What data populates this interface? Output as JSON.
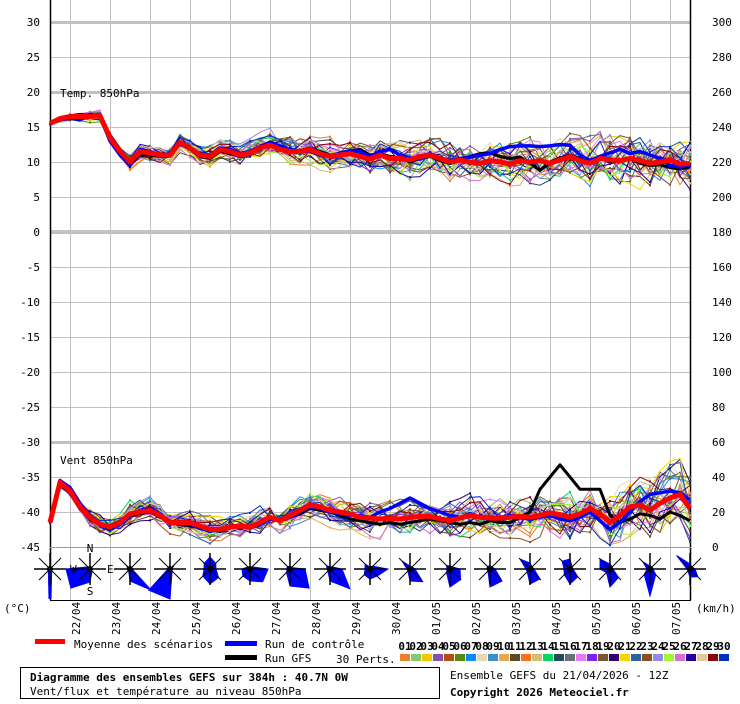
{
  "chart_data": {
    "type": "line",
    "panels": [
      {
        "label": "Temp. 850hPa",
        "unit": "(°C)",
        "axis": "left",
        "ylim": [
          0,
          30
        ],
        "ticks": [
          30,
          25,
          20,
          15,
          10,
          5,
          0
        ],
        "mean": [
          15.5,
          16.2,
          16.5,
          16.5,
          16.5,
          16.6,
          13.5,
          11.5,
          10.0,
          11.5,
          11.3,
          11.0,
          11.0,
          12.8,
          12.0,
          11.0,
          10.8,
          11.8,
          11.5,
          11.0,
          11.3,
          12.0,
          12.4,
          11.8,
          11.5,
          11.5,
          11.8,
          11.2,
          10.8,
          11.0,
          11.2,
          10.8,
          10.4,
          11.0,
          10.5,
          10.5,
          10.3,
          10.8,
          11.0,
          10.5,
          10.0,
          10.3,
          10.0,
          9.8,
          10.2,
          10.0,
          9.7,
          10.2,
          10.0,
          10.2,
          9.8,
          10.3,
          10.8,
          10.2,
          9.8,
          10.5,
          10.3,
          10.2,
          10.5,
          10.2,
          9.8,
          10.0,
          10.3,
          9.7,
          9.8
        ],
        "control": [
          15.5,
          16.0,
          16.3,
          16.0,
          16.8,
          16.5,
          13.0,
          11.0,
          9.5,
          11.8,
          11.5,
          11.0,
          11.2,
          12.5,
          12.0,
          11.2,
          11.0,
          12.0,
          11.8,
          11.2,
          11.5,
          12.2,
          12.8,
          12.3,
          11.8,
          11.5,
          11.5,
          11.0,
          10.8,
          11.3,
          11.6,
          11.5,
          10.8,
          11.5,
          11.8,
          11.0,
          10.6,
          10.4,
          11.2,
          10.6,
          10.2,
          10.5,
          10.7,
          11.0,
          11.2,
          11.8,
          12.2,
          12.3,
          12.3,
          12.2,
          12.3,
          12.5,
          12.4,
          11.0,
          10.2,
          10.8,
          11.3,
          11.8,
          11.2,
          11.5,
          11.0,
          10.5,
          9.5,
          9.3,
          9.6
        ],
        "gfs": [
          15.5,
          16.3,
          16.6,
          16.8,
          16.6,
          16.4,
          13.8,
          11.2,
          9.8,
          11.0,
          11.0,
          10.8,
          10.8,
          12.6,
          11.8,
          10.8,
          10.5,
          11.5,
          11.2,
          11.0,
          11.2,
          11.8,
          12.5,
          12.0,
          11.8,
          11.6,
          12.0,
          11.5,
          11.0,
          11.0,
          11.5,
          11.8,
          11.0,
          11.2,
          10.8,
          10.6,
          10.0,
          10.5,
          10.8,
          10.2,
          9.8,
          10.2,
          10.8,
          11.2,
          11.3,
          10.8,
          10.5,
          10.7,
          9.8,
          8.8,
          10.0,
          10.6,
          11.0,
          10.5,
          10.3,
          10.5,
          10.0,
          10.2,
          10.4,
          9.8,
          9.5,
          9.6,
          9.2,
          9.0,
          9.3
        ],
        "ensemble_spread_by_day": [
          0.4,
          0.6,
          0.9,
          1.0,
          1.1,
          1.3,
          1.5,
          1.6,
          1.8,
          1.9,
          2.0,
          2.1,
          2.2,
          2.4,
          2.6,
          2.8,
          3.0
        ]
      },
      {
        "label": "Vent 850hPa",
        "unit": "(km/h)",
        "axis": "right",
        "ylim": [
          0,
          120
        ],
        "ticks": [
          300,
          280,
          260,
          240,
          220,
          200,
          180,
          160,
          140,
          120,
          100,
          80,
          60,
          40,
          20,
          0
        ],
        "mean": [
          14,
          37,
          32,
          23,
          17,
          13,
          11.4,
          14,
          19,
          20,
          21,
          18,
          14,
          14,
          14,
          12,
          10,
          10,
          11.5,
          12,
          11.5,
          14,
          17,
          15,
          18,
          21,
          24,
          23,
          21,
          20,
          19,
          17,
          16.6,
          16,
          16.5,
          16,
          17,
          17.5,
          17.5,
          16,
          15,
          16.5,
          18,
          17,
          16.6,
          16.5,
          17,
          17.5,
          17,
          18,
          19.4,
          18.5,
          17,
          19,
          22,
          19,
          14,
          18,
          23,
          24,
          21,
          25,
          28,
          30,
          22
        ],
        "control": [
          14,
          38,
          34,
          25,
          18,
          12,
          10,
          13,
          18,
          21,
          22,
          19,
          14,
          13,
          13,
          11,
          9,
          10,
          12,
          12,
          11,
          13,
          16,
          15,
          17,
          20,
          23,
          22,
          20,
          19,
          18,
          18,
          17,
          20,
          22,
          25,
          28,
          25,
          22,
          20,
          18,
          17,
          19,
          17,
          16,
          17,
          18,
          17,
          16,
          17,
          18,
          16,
          15,
          17,
          20,
          15,
          10,
          14,
          20,
          26,
          30,
          31,
          32,
          31,
          27
        ],
        "gfs": [
          14,
          36,
          31,
          22,
          16,
          13,
          12,
          15,
          18,
          19,
          20,
          17,
          15,
          13,
          12,
          11,
          10,
          9,
          11,
          12,
          12,
          14,
          16,
          16,
          17,
          19,
          22,
          21,
          20,
          18,
          16,
          15,
          14,
          13,
          14,
          13,
          14,
          15,
          16,
          15,
          14,
          13,
          14,
          13,
          15,
          14,
          14,
          17,
          20,
          33,
          40,
          47,
          40,
          33,
          33,
          33,
          18,
          14,
          16,
          19,
          18,
          16,
          20,
          18,
          15
        ],
        "ensemble_spread_by_day": [
          2,
          4,
          5,
          5,
          5,
          6,
          6,
          6,
          7,
          7,
          8,
          8,
          9,
          10,
          12,
          14,
          15
        ]
      }
    ],
    "left_ticks": [
      30,
      25,
      20,
      15,
      10,
      5,
      0,
      -5,
      -10,
      -15,
      -20,
      -25,
      -30,
      -35,
      -40,
      -45
    ],
    "right_ticks": [
      300,
      280,
      260,
      240,
      220,
      200,
      180,
      160,
      140,
      120,
      100,
      80,
      60,
      40,
      20,
      0
    ],
    "x_step_hours": 6,
    "x_tick_labels": [
      "22/04",
      "23/04",
      "24/04",
      "25/04",
      "26/04",
      "27/04",
      "28/04",
      "29/04",
      "30/04",
      "01/05",
      "02/05",
      "03/05",
      "04/05",
      "05/05",
      "06/05",
      "07/05"
    ],
    "wind_rose": {
      "direction_labels": {
        "n": "N",
        "e": "E",
        "s": "S",
        "w": "W"
      },
      "direction_order": [
        "N",
        "NE",
        "E",
        "SE",
        "S",
        "SW",
        "W",
        "NW"
      ],
      "frequencies": [
        [
          1,
          1,
          1,
          1,
          45,
          1,
          1,
          1
        ],
        [
          0,
          0,
          0,
          3,
          13,
          27,
          24,
          3
        ],
        [
          0,
          0,
          2,
          39,
          12,
          2,
          2,
          5
        ],
        [
          0,
          6,
          2,
          3,
          32,
          30,
          2,
          2
        ],
        [
          12,
          8,
          6,
          12,
          15,
          10,
          6,
          8
        ],
        [
          0,
          3,
          18,
          18,
          12,
          10,
          8,
          3
        ],
        [
          2,
          2,
          15,
          27,
          17,
          5,
          3,
          4
        ],
        [
          2,
          3,
          12,
          28,
          12,
          3,
          3,
          5
        ],
        [
          2,
          4,
          18,
          10,
          10,
          8,
          5,
          7
        ],
        [
          3,
          3,
          5,
          18,
          12,
          3,
          3,
          11
        ],
        [
          3,
          3,
          10,
          15,
          18,
          5,
          3,
          5
        ],
        [
          3,
          3,
          5,
          17,
          18,
          3,
          3,
          4
        ],
        [
          6,
          3,
          4,
          14,
          15,
          4,
          4,
          14
        ],
        [
          10,
          3,
          3,
          11,
          15,
          8,
          6,
          11
        ],
        [
          5,
          3,
          3,
          12,
          18,
          5,
          10,
          14
        ],
        [
          3,
          3,
          3,
          8,
          27,
          8,
          3,
          10
        ],
        [
          5,
          3,
          5,
          11,
          8,
          3,
          3,
          19
        ]
      ]
    },
    "legend": {
      "mean": "Moyenne des scénarios",
      "control": "Run de contrôle",
      "gfs": "Run GFS",
      "perts": "30 Perts.",
      "member_numbers": [
        "01",
        "02",
        "03",
        "04",
        "05",
        "06",
        "07",
        "08",
        "09",
        "10",
        "11",
        "12",
        "13",
        "14",
        "15",
        "16",
        "17",
        "18",
        "19",
        "20",
        "21",
        "22",
        "23",
        "24",
        "25",
        "26",
        "27",
        "28",
        "29",
        "30"
      ]
    },
    "colors": {
      "mean": "#ff0000",
      "control": "#0000ff",
      "gfs": "#000000",
      "rose": "#0000ff",
      "members": [
        "#e8802e",
        "#88c870",
        "#f0c800",
        "#8850a8",
        "#b05010",
        "#588a10",
        "#0a88f8",
        "#e8d8b0",
        "#3a90c0",
        "#e8a850",
        "#604818",
        "#f87020",
        "#d0c078",
        "#08d860",
        "#284860",
        "#687078",
        "#e878f8",
        "#8020f0",
        "#785830",
        "#300070",
        "#f0d800",
        "#2860a0",
        "#885020",
        "#9888e8",
        "#a0f830",
        "#d870d0",
        "#200098",
        "#e0c8a0",
        "#880808",
        "#0030c0"
      ]
    },
    "grid": true
  },
  "footer": {
    "title": "Diagramme des ensembles GEFS sur 384h : 40.7N 0W",
    "subtitle": "Vent/flux et température au niveau 850hPa",
    "run": "Ensemble GEFS du 21/04/2026 - 12Z",
    "copyright": "Copyright 2026 Meteociel.fr"
  }
}
